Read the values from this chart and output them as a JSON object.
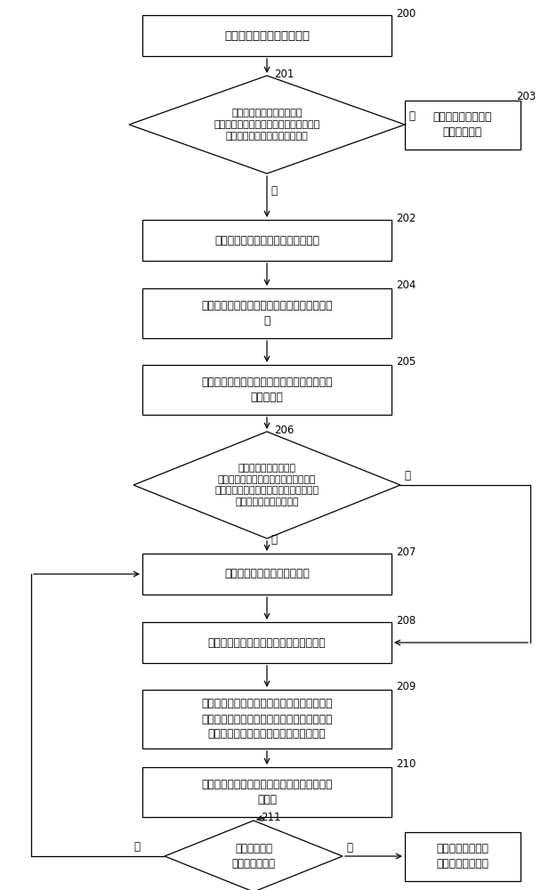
{
  "bg_color": "#ffffff",
  "box_color": "#ffffff",
  "box_edge": "#000000",
  "text_color": "#000000",
  "arrow_color": "#000000",
  "nodes": {
    "200": {
      "label": "采集搭乘者的生物参数信息"
    },
    "201": {
      "label": "判断搭乘者的生物参数信息\n与预存储的车主信息库中的无人驾驶汽车\n的车主的生物参数信息是否匹配"
    },
    "202": {
      "label": "确定搭乘者不是无人驾驶汽车的车主"
    },
    "203": {
      "label": "确定搭乘者是无人驾\n驶汽车的车主"
    },
    "204": {
      "label": "向无人驾驶汽车的车主的终端发送身份认证请\n求"
    },
    "205": {
      "label": "接收无人驾驶汽车的车主的通过终端发送的同\n意身份认证"
    },
    "206": {
      "label": "判断搭乘者的生物参数\n信息与预存储的备用搭乘信息库中的无\n人驾驶汽车的车主之外的其它备用搭乘者\n的生物参数信息是否匹配"
    },
    "207": {
      "label": "控制无人驾驶汽车启动，结束"
    },
    "208": {
      "label": "采集位于无人驾驶汽车内的搭乘者的视频"
    },
    "209": {
      "label": "向无人驾驶汽车的车主的终端发送搭乘者的视\n频，以供无人驾驶汽车的车主根据搭乘者的视\n频确定是否允许搭乘者搭乘无人驾驶汽车"
    },
    "210": {
      "label": "接收无人驾驶汽车的车主的通过终端发送的控\n制指令"
    },
    "211": {
      "label": "判断控制指令\n是否为启动指令"
    },
    "212": {
      "label": "暂时不执行无人驾\n驶汽车的启动操作"
    }
  },
  "yes_label": "是",
  "no_label": "否",
  "lw": 0.9,
  "tag_fs": 8.5,
  "main_fs": 8.8,
  "side_fs": 8.8
}
